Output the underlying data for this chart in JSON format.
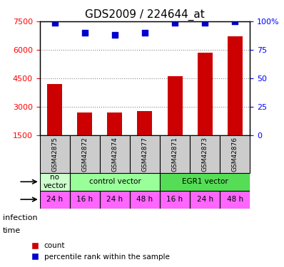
{
  "title": "GDS2009 / 224644_at",
  "samples": [
    "GSM42875",
    "GSM42872",
    "GSM42874",
    "GSM42877",
    "GSM42871",
    "GSM42873",
    "GSM42876"
  ],
  "counts": [
    4200,
    2700,
    2700,
    2750,
    4600,
    5850,
    6700
  ],
  "percentiles": [
    99,
    90,
    88,
    90,
    99,
    99,
    100
  ],
  "ylim_left": [
    1500,
    7500
  ],
  "yticks_left": [
    1500,
    3000,
    4500,
    6000,
    7500
  ],
  "yticks_right": [
    0,
    25,
    50,
    75,
    100
  ],
  "bar_color": "#cc0000",
  "percentile_color": "#0000cc",
  "infection_data": [
    {
      "start": 0,
      "end": 1,
      "label": "no\nvector",
      "color": "#ccffcc"
    },
    {
      "start": 1,
      "end": 4,
      "label": "control vector",
      "color": "#99ff99"
    },
    {
      "start": 4,
      "end": 7,
      "label": "EGR1 vector",
      "color": "#55dd55"
    }
  ],
  "time_labels": [
    "24 h",
    "16 h",
    "24 h",
    "48 h",
    "16 h",
    "24 h",
    "48 h"
  ],
  "time_color": "#ff66ff",
  "grid_color": "#888888",
  "bg_color": "#ffffff",
  "sample_color": "#cccccc"
}
